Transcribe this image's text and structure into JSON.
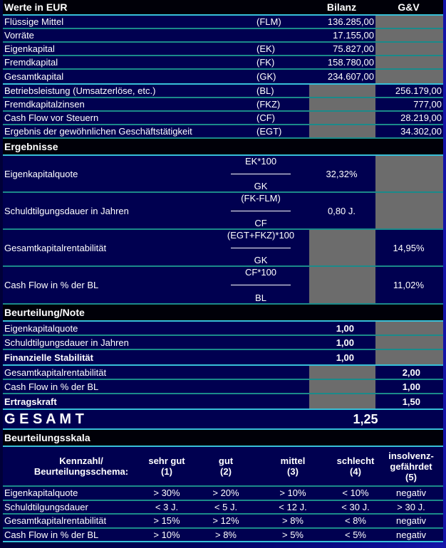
{
  "header": {
    "title": "Werte in EUR",
    "col_bilanz": "Bilanz",
    "col_guv": "G&V"
  },
  "inputs_bilanz": [
    {
      "label": "Flüssige Mittel",
      "abbr": "(FLM)",
      "value": "136.285,00"
    },
    {
      "label": "Vorräte",
      "abbr": "",
      "value": "17.155,00"
    },
    {
      "label": "Eigenkapital",
      "abbr": "(EK)",
      "value": "75.827,00"
    },
    {
      "label": "Fremdkapital",
      "abbr": "(FK)",
      "value": "158.780,00"
    },
    {
      "label": "Gesamtkapital",
      "abbr": "(GK)",
      "value": "234.607,00"
    }
  ],
  "inputs_guv": [
    {
      "label": "Betriebsleistung (Umsatzerlöse, etc.)",
      "abbr": "(BL)",
      "value": "256.179,00"
    },
    {
      "label": "Fremdkapitalzinsen",
      "abbr": "(FKZ)",
      "value": "777,00"
    },
    {
      "label": "Cash Flow vor Steuern",
      "abbr": "(CF)",
      "value": "28.219,00"
    },
    {
      "label": "Ergebnis der gewöhnlichen Geschäftstätigkeit",
      "abbr": "(EGT)",
      "value": "34.302,00"
    }
  ],
  "results": {
    "title": "Ergebnisse",
    "rows": [
      {
        "label": "Eigenkapitalquote",
        "num": "EK*100",
        "den": "GK",
        "bilanz": "32,32%",
        "guv": ""
      },
      {
        "label": "Schuldtilgungsdauer in Jahren",
        "num": "(FK-FLM)",
        "den": "CF",
        "bilanz": "0,80 J.",
        "guv": ""
      },
      {
        "label": "Gesamtkapitalrentabilität",
        "num": "(EGT+FKZ)*100",
        "den": "GK",
        "bilanz": "",
        "guv": "14,95%"
      },
      {
        "label": "Cash Flow in % der BL",
        "num": "CF*100",
        "den": "BL",
        "bilanz": "",
        "guv": "11,02%"
      }
    ]
  },
  "grades": {
    "title": "Beurteilung/Note",
    "rows": [
      {
        "label": "Eigenkapitalquote",
        "bilanz": "1,00",
        "guv": "",
        "bold": false
      },
      {
        "label": "Schuldtilgungsdauer in Jahren",
        "bilanz": "1,00",
        "guv": "",
        "bold": false
      },
      {
        "label": "Finanzielle Stabilität",
        "bilanz": "1,00",
        "guv": "",
        "bold": true
      },
      {
        "label": "Gesamtkapitalrentabilität",
        "bilanz": "",
        "guv": "2,00",
        "bold": false
      },
      {
        "label": "Cash Flow in % der BL",
        "bilanz": "",
        "guv": "1,00",
        "bold": false
      },
      {
        "label": "Ertragskraft",
        "bilanz": "",
        "guv": "1,50",
        "bold": true
      }
    ],
    "total_label": "G E S A M T",
    "total_value": "1,25"
  },
  "scale": {
    "title": "Beurteilungsskala",
    "headers": [
      "Kennzahl/\nBeurteilungsschema:",
      "sehr gut\n(1)",
      "gut\n(2)",
      "mittel\n(3)",
      "schlecht\n(4)",
      "insolvenz-\ngefährdet\n(5)"
    ],
    "rows": [
      [
        "Eigenkapitalquote",
        "> 30%",
        "> 20%",
        "> 10%",
        "< 10%",
        "negativ"
      ],
      [
        "Schuldtilgungsdauer",
        "< 3 J.",
        "< 5 J.",
        "< 12 J.",
        "< 30 J.",
        "> 30 J."
      ],
      [
        "Gesamtkapitalrentabilität",
        "> 15%",
        "> 12%",
        "> 8%",
        "< 8%",
        "negativ"
      ],
      [
        "Cash Flow in % der BL",
        "> 10%",
        "> 8%",
        "> 5%",
        "< 5%",
        "negativ"
      ]
    ]
  },
  "colors": {
    "background": "#00005a",
    "row": "#000050",
    "separator": "#1b8a8a",
    "empty_cell": "#6c6c6c"
  }
}
